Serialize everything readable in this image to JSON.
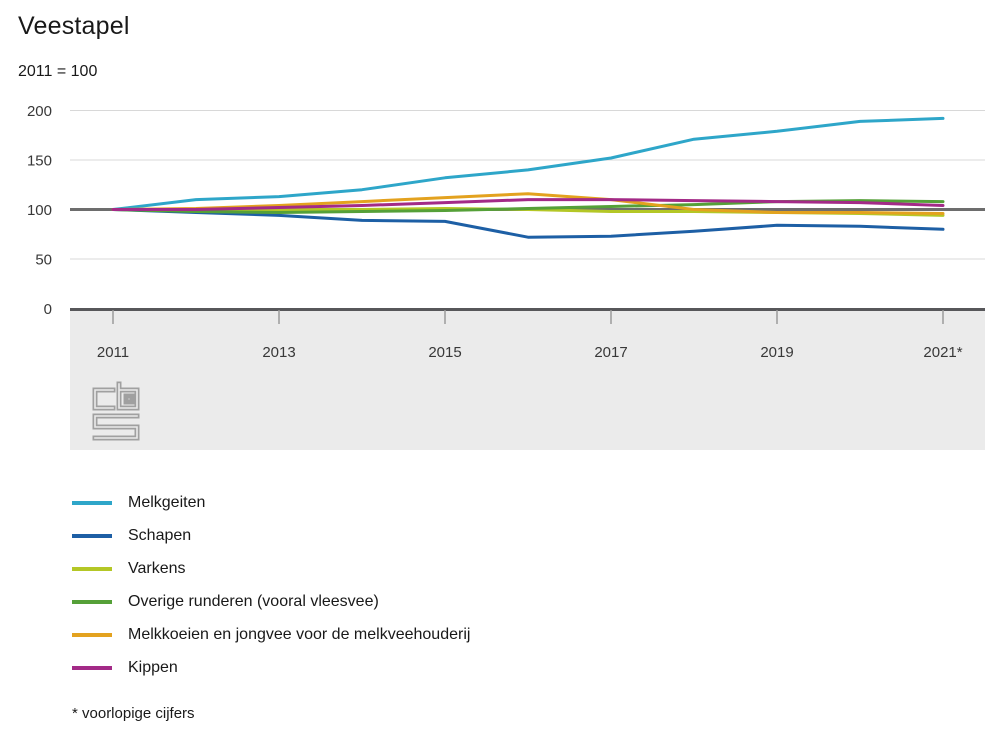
{
  "title": "Veestapel",
  "subtitle": "2011 = 100",
  "footnote": "* voorlopige cijfers",
  "logo_name": "cbs-logo",
  "chart_data": {
    "type": "line",
    "title": "Veestapel",
    "subtitle": "2011 = 100",
    "x": [
      2011,
      2012,
      2013,
      2014,
      2015,
      2016,
      2017,
      2018,
      2019,
      2020,
      2021
    ],
    "x_tick_years": [
      2011,
      2013,
      2015,
      2017,
      2019,
      2021
    ],
    "x_tick_labels": [
      "2011",
      "2013",
      "2015",
      "2017",
      "2019",
      "2021*"
    ],
    "y_ticks": [
      0,
      50,
      100,
      150,
      200
    ],
    "ylim": [
      0,
      200
    ],
    "baseline_value": 100,
    "grid": true,
    "legend_position": "bottom-left",
    "xlabel": "",
    "ylabel": "",
    "series": [
      {
        "name": "Melkgeiten",
        "color": "#2ea6c9",
        "values": [
          100,
          110,
          113,
          120,
          132,
          140,
          152,
          171,
          179,
          189,
          192
        ]
      },
      {
        "name": "Schapen",
        "color": "#1d5fa5",
        "values": [
          100,
          97,
          94,
          89,
          88,
          72,
          73,
          78,
          84,
          83,
          80
        ]
      },
      {
        "name": "Varkens",
        "color": "#b4c726",
        "values": [
          100,
          99,
          100,
          100,
          101,
          100,
          98,
          98,
          97,
          96,
          94
        ]
      },
      {
        "name": "Overige runderen (vooral vleesvee)",
        "color": "#55a038",
        "values": [
          100,
          98,
          97,
          98,
          99,
          101,
          103,
          105,
          108,
          109,
          108
        ]
      },
      {
        "name": "Melkkoeien en jongvee voor de melkveehouderij",
        "color": "#e3a21f",
        "values": [
          100,
          101,
          104,
          108,
          112,
          116,
          110,
          100,
          97,
          97,
          96
        ]
      },
      {
        "name": "Kippen",
        "color": "#a32a87",
        "values": [
          100,
          100,
          102,
          104,
          107,
          110,
          110,
          109,
          108,
          107,
          104
        ]
      }
    ],
    "style": {
      "grid_color": "#d8d8d8",
      "baseline_color": "#6d6d6d",
      "axis_color": "#57575a",
      "tick_color": "#9b9b9b",
      "band_color": "#ebebeb",
      "logo_color": "#a0a0a0"
    }
  }
}
